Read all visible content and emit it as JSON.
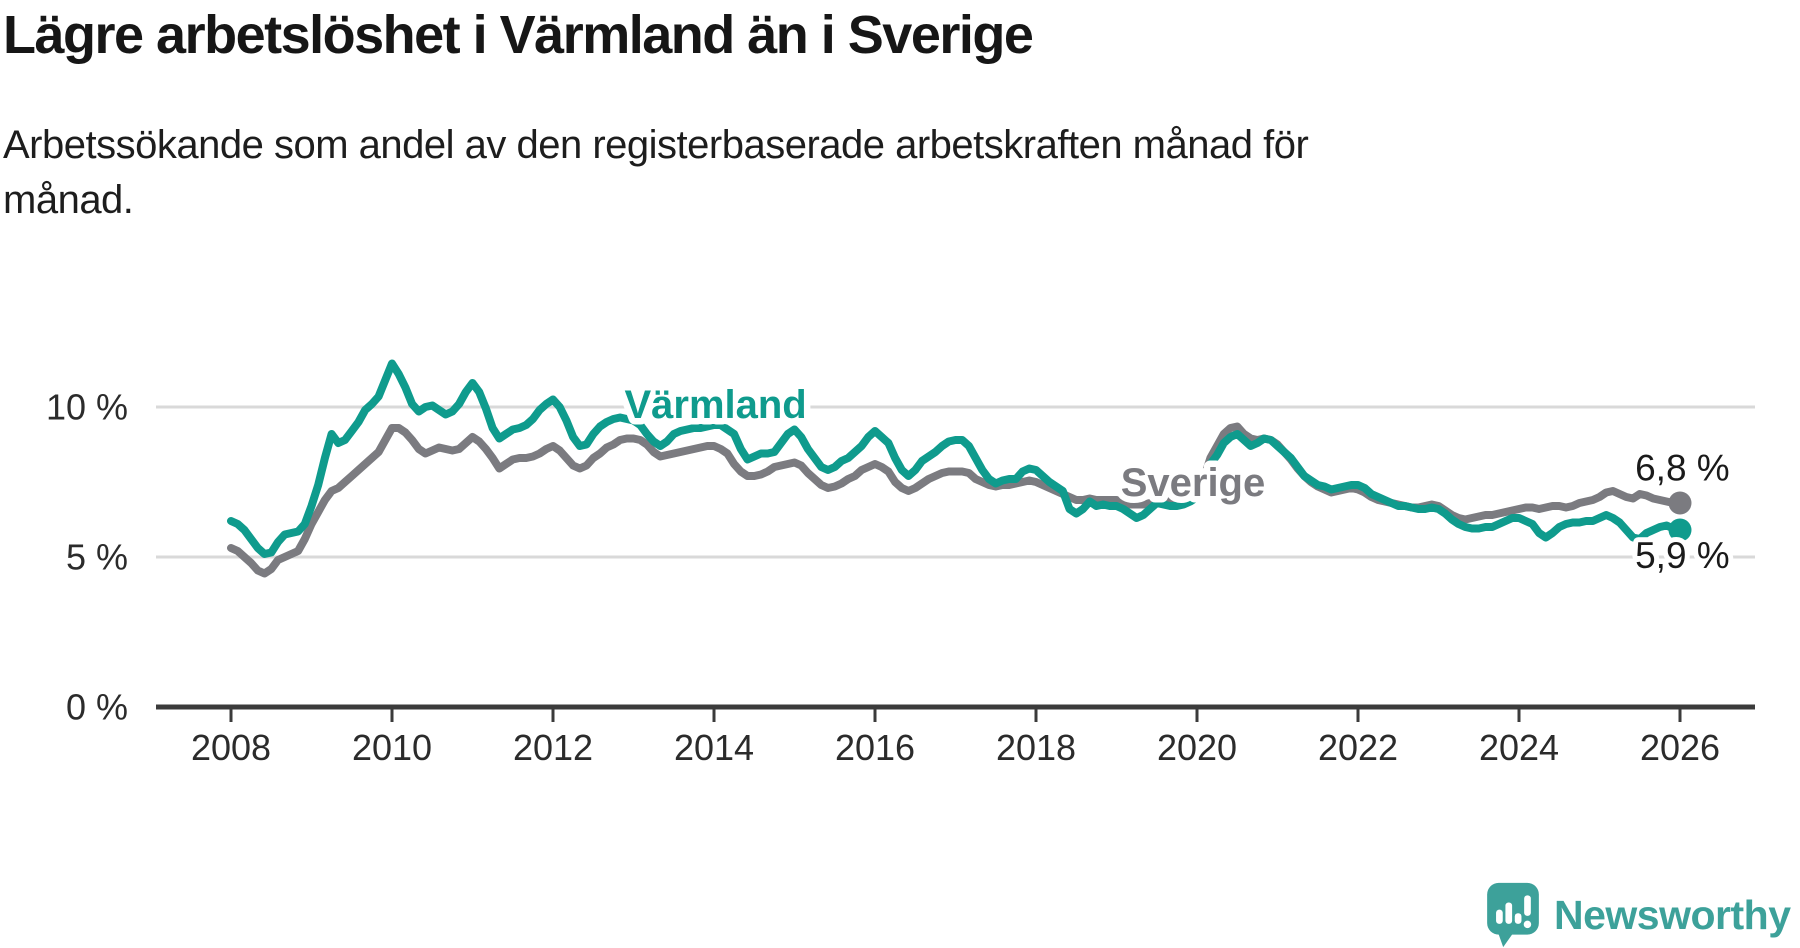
{
  "header": {
    "title": "Lägre arbetslöshet i Värmland än i Sverige",
    "subtitle_line1": "Arbetssökande som andel av den registerbaserade arbetskraften månad för",
    "subtitle_line2": "månad."
  },
  "colors": {
    "varmland": "#0f9b8d",
    "sverige": "#7b7b80",
    "grid": "#d9d9d9",
    "axis": "#3b3b3b",
    "tick_text": "#2b2b2b",
    "value_text": "#1a1a1a",
    "logo": "#3da19a"
  },
  "branding": {
    "name": "Newsworthy"
  },
  "chart_data": {
    "type": "line",
    "title": "Lägre arbetslöshet i Värmland än i Sverige",
    "subtitle": "Arbetssökande som andel av den registerbaserade arbetskraften månad för månad.",
    "x_start": 2008,
    "points_per_year": 12,
    "x_ticks": [
      2008,
      2010,
      2012,
      2014,
      2016,
      2018,
      2020,
      2022,
      2024,
      2026
    ],
    "y_ticks": [
      {
        "v": 0,
        "label": "0 %"
      },
      {
        "v": 5,
        "label": "5 %"
      },
      {
        "v": 10,
        "label": "10 %"
      }
    ],
    "ylim": [
      0,
      12
    ],
    "grid": "horizontal",
    "legend_position": "inline-labels",
    "series": [
      {
        "name": "Sverige",
        "color_key": "sverige",
        "end_label": "6,8 %",
        "values": [
          5.3,
          5.2,
          5.0,
          4.8,
          4.55,
          4.45,
          4.6,
          4.9,
          5.0,
          5.1,
          5.2,
          5.6,
          6.1,
          6.5,
          6.9,
          7.2,
          7.3,
          7.5,
          7.7,
          7.9,
          8.1,
          8.3,
          8.5,
          8.9,
          9.3,
          9.3,
          9.15,
          8.9,
          8.6,
          8.45,
          8.55,
          8.65,
          8.6,
          8.55,
          8.6,
          8.8,
          9.0,
          8.85,
          8.6,
          8.3,
          7.95,
          8.1,
          8.25,
          8.3,
          8.3,
          8.35,
          8.45,
          8.6,
          8.7,
          8.55,
          8.3,
          8.05,
          7.95,
          8.05,
          8.3,
          8.45,
          8.65,
          8.75,
          8.9,
          8.95,
          8.95,
          8.9,
          8.75,
          8.5,
          8.35,
          8.4,
          8.45,
          8.5,
          8.55,
          8.6,
          8.65,
          8.7,
          8.7,
          8.6,
          8.45,
          8.1,
          7.85,
          7.7,
          7.7,
          7.75,
          7.85,
          8.0,
          8.05,
          8.1,
          8.15,
          8.05,
          7.8,
          7.6,
          7.4,
          7.3,
          7.35,
          7.45,
          7.6,
          7.7,
          7.9,
          8.0,
          8.1,
          8.0,
          7.85,
          7.5,
          7.3,
          7.2,
          7.3,
          7.45,
          7.6,
          7.7,
          7.8,
          7.85,
          7.85,
          7.85,
          7.8,
          7.6,
          7.5,
          7.4,
          7.35,
          7.4,
          7.4,
          7.45,
          7.5,
          7.55,
          7.5,
          7.4,
          7.3,
          7.2,
          7.1,
          7.0,
          6.9,
          6.9,
          6.95,
          6.9,
          6.9,
          6.9,
          6.9,
          6.85,
          6.75,
          6.75,
          6.75,
          6.8,
          6.85,
          6.9,
          6.9,
          6.95,
          7.0,
          7.1,
          7.3,
          7.6,
          8.3,
          8.7,
          9.1,
          9.3,
          9.35,
          9.1,
          8.95,
          8.9,
          8.95,
          8.9,
          8.75,
          8.5,
          8.25,
          7.95,
          7.7,
          7.5,
          7.35,
          7.25,
          7.15,
          7.2,
          7.25,
          7.3,
          7.25,
          7.15,
          7.0,
          6.9,
          6.85,
          6.8,
          6.75,
          6.7,
          6.65,
          6.65,
          6.7,
          6.75,
          6.7,
          6.55,
          6.4,
          6.3,
          6.25,
          6.3,
          6.35,
          6.4,
          6.4,
          6.45,
          6.5,
          6.55,
          6.6,
          6.65,
          6.65,
          6.6,
          6.65,
          6.7,
          6.7,
          6.65,
          6.7,
          6.8,
          6.85,
          6.9,
          7.0,
          7.15,
          7.2,
          7.1,
          7.0,
          6.95,
          7.1,
          7.05,
          6.95,
          6.9,
          6.85,
          6.8,
          6.8
        ]
      },
      {
        "name": "Värmland",
        "color_key": "varmland",
        "end_label": "5,9 %",
        "values": [
          6.2,
          6.1,
          5.9,
          5.6,
          5.3,
          5.1,
          5.15,
          5.5,
          5.75,
          5.8,
          5.85,
          6.1,
          6.7,
          7.4,
          8.3,
          9.1,
          8.8,
          8.9,
          9.2,
          9.5,
          9.9,
          10.1,
          10.35,
          10.9,
          11.45,
          11.1,
          10.65,
          10.1,
          9.85,
          10.0,
          10.05,
          9.9,
          9.75,
          9.85,
          10.1,
          10.5,
          10.8,
          10.5,
          9.95,
          9.3,
          8.95,
          9.1,
          9.25,
          9.3,
          9.4,
          9.6,
          9.9,
          10.1,
          10.25,
          10.0,
          9.55,
          9.0,
          8.7,
          8.75,
          9.1,
          9.35,
          9.5,
          9.6,
          9.65,
          9.6,
          9.55,
          9.4,
          9.1,
          8.85,
          8.7,
          8.85,
          9.1,
          9.2,
          9.25,
          9.3,
          9.3,
          9.35,
          9.4,
          9.4,
          9.25,
          9.1,
          8.6,
          8.25,
          8.35,
          8.45,
          8.45,
          8.5,
          8.8,
          9.1,
          9.25,
          9.0,
          8.6,
          8.3,
          8.0,
          7.9,
          8.0,
          8.2,
          8.3,
          8.5,
          8.7,
          9.0,
          9.2,
          9.0,
          8.8,
          8.3,
          7.9,
          7.7,
          7.9,
          8.2,
          8.35,
          8.5,
          8.7,
          8.85,
          8.9,
          8.9,
          8.7,
          8.3,
          7.9,
          7.6,
          7.45,
          7.55,
          7.6,
          7.6,
          7.85,
          7.95,
          7.9,
          7.7,
          7.5,
          7.35,
          7.2,
          6.6,
          6.45,
          6.6,
          6.85,
          6.7,
          6.75,
          6.7,
          6.7,
          6.6,
          6.45,
          6.3,
          6.4,
          6.6,
          6.8,
          6.75,
          6.7,
          6.7,
          6.75,
          6.85,
          7.0,
          7.3,
          8.1,
          8.4,
          8.8,
          9.0,
          9.1,
          8.9,
          8.7,
          8.8,
          8.95,
          8.9,
          8.7,
          8.5,
          8.3,
          8.0,
          7.7,
          7.55,
          7.4,
          7.35,
          7.25,
          7.3,
          7.35,
          7.4,
          7.4,
          7.3,
          7.1,
          7.0,
          6.9,
          6.8,
          6.7,
          6.7,
          6.65,
          6.6,
          6.6,
          6.65,
          6.6,
          6.45,
          6.25,
          6.1,
          6.0,
          5.95,
          5.95,
          6.0,
          6.0,
          6.1,
          6.2,
          6.3,
          6.3,
          6.2,
          6.1,
          5.8,
          5.65,
          5.8,
          6.0,
          6.1,
          6.15,
          6.15,
          6.2,
          6.2,
          6.3,
          6.4,
          6.3,
          6.15,
          5.9,
          5.65,
          5.6,
          5.8,
          5.9,
          6.0,
          6.05,
          5.95,
          5.9
        ]
      }
    ],
    "series_labels": [
      {
        "text": "Värmland",
        "x": 2014.02,
        "y": 9.63,
        "color_key": "varmland"
      },
      {
        "text": "Sverige",
        "x": 2019.95,
        "y": 7.03,
        "color_key": "sverige"
      }
    ],
    "end_value_labels": [
      {
        "text": "6,8 %",
        "x": 2026.03,
        "y": 7.55
      },
      {
        "text": "5,9 %",
        "x": 2026.03,
        "y": 4.63
      }
    ]
  }
}
